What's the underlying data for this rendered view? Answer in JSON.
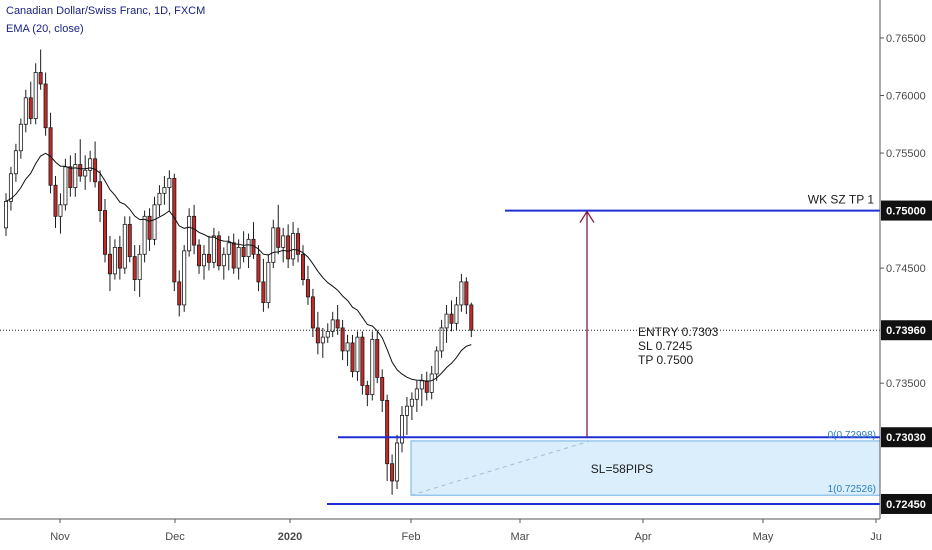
{
  "header": {
    "title": "Canadian Dollar/Swiss Franc, 1D, FXCM",
    "indicator": "EMA (20, close)"
  },
  "colors": {
    "up": "#ffffff",
    "down": "#c62828",
    "wick": "#1c1c1c",
    "ema": "#111111",
    "levels": "#1f2fd6",
    "arrow": "#7b1b47",
    "box_fill": "#dbeefb",
    "box_stroke": "#6fb0e3",
    "badge": "#111111"
  },
  "annotations": {
    "wk_label": "WK SZ TP 1",
    "entry_lines": [
      "ENTRY 0.7303",
      "SL 0.7245",
      "TP 0.7500"
    ],
    "box_label": "SL=58PIPS",
    "fib_top": "0(0.72998)",
    "fib_bottom": "1(0.72526)"
  },
  "chart_data": {
    "type": "candlestick",
    "title": "Canadian Dollar/Swiss Franc, 1D, FXCM",
    "price_range": [
      0.7205,
      0.7683
    ],
    "y_ticks": [
      "0.76500",
      "0.76000",
      "0.75500",
      "0.74500",
      "0.73500"
    ],
    "x_ticks": [
      {
        "label": "Nov",
        "bold": false
      },
      {
        "label": "Dec",
        "bold": false
      },
      {
        "label": "2020",
        "bold": true
      },
      {
        "label": "Feb",
        "bold": false
      },
      {
        "label": "Mar",
        "bold": false
      },
      {
        "label": "Apr",
        "bold": false
      },
      {
        "label": "May",
        "bold": false
      },
      {
        "label": "Ju",
        "bold": false
      }
    ],
    "badges": [
      "0.75000",
      "0.73960",
      "0.73030",
      "0.72450"
    ],
    "levels": [
      0.75,
      0.7303,
      0.7245
    ],
    "current_price": 0.7396,
    "ema_period": 20,
    "candles": [
      [
        0.7485,
        0.7515,
        0.7478,
        0.7508
      ],
      [
        0.7508,
        0.7538,
        0.75,
        0.7532
      ],
      [
        0.7532,
        0.7558,
        0.7525,
        0.7552
      ],
      [
        0.7552,
        0.758,
        0.7545,
        0.7575
      ],
      [
        0.7575,
        0.7605,
        0.7568,
        0.7598
      ],
      [
        0.7598,
        0.7612,
        0.7575,
        0.758
      ],
      [
        0.758,
        0.7628,
        0.7575,
        0.762
      ],
      [
        0.762,
        0.764,
        0.7605,
        0.761
      ],
      [
        0.761,
        0.762,
        0.7565,
        0.7572
      ],
      [
        0.7572,
        0.7585,
        0.7515,
        0.7522
      ],
      [
        0.7522,
        0.753,
        0.7485,
        0.7495
      ],
      [
        0.7495,
        0.7515,
        0.748,
        0.7505
      ],
      [
        0.7505,
        0.7545,
        0.75,
        0.7538
      ],
      [
        0.7538,
        0.7548,
        0.7512,
        0.752
      ],
      [
        0.752,
        0.755,
        0.7512,
        0.754
      ],
      [
        0.754,
        0.7562,
        0.7525,
        0.753
      ],
      [
        0.753,
        0.7548,
        0.7518,
        0.7535
      ],
      [
        0.7535,
        0.7552,
        0.7525,
        0.7545
      ],
      [
        0.7545,
        0.756,
        0.752,
        0.7525
      ],
      [
        0.7525,
        0.7535,
        0.749,
        0.75
      ],
      [
        0.75,
        0.751,
        0.7455,
        0.7462
      ],
      [
        0.7462,
        0.7478,
        0.743,
        0.7445
      ],
      [
        0.7445,
        0.7475,
        0.744,
        0.7468
      ],
      [
        0.7468,
        0.7478,
        0.744,
        0.745
      ],
      [
        0.745,
        0.7495,
        0.7445,
        0.7488
      ],
      [
        0.7488,
        0.7495,
        0.7455,
        0.746
      ],
      [
        0.746,
        0.747,
        0.743,
        0.744
      ],
      [
        0.744,
        0.747,
        0.7425,
        0.7462
      ],
      [
        0.7462,
        0.75,
        0.7455,
        0.7495
      ],
      [
        0.7495,
        0.7502,
        0.7465,
        0.7475
      ],
      [
        0.7475,
        0.7512,
        0.747,
        0.7505
      ],
      [
        0.7505,
        0.7522,
        0.7495,
        0.7515
      ],
      [
        0.7515,
        0.753,
        0.7505,
        0.752
      ],
      [
        0.752,
        0.7535,
        0.75,
        0.7528
      ],
      [
        0.7528,
        0.7532,
        0.743,
        0.7438
      ],
      [
        0.7438,
        0.7448,
        0.7408,
        0.7418
      ],
      [
        0.7418,
        0.747,
        0.7412,
        0.7465
      ],
      [
        0.7465,
        0.7502,
        0.746,
        0.7495
      ],
      [
        0.7495,
        0.7505,
        0.7462,
        0.747
      ],
      [
        0.747,
        0.7475,
        0.7445,
        0.7452
      ],
      [
        0.7452,
        0.747,
        0.744,
        0.7462
      ],
      [
        0.7462,
        0.7478,
        0.7448,
        0.7455
      ],
      [
        0.7455,
        0.7485,
        0.745,
        0.7478
      ],
      [
        0.7478,
        0.7482,
        0.7448,
        0.7452
      ],
      [
        0.7452,
        0.7468,
        0.744,
        0.7462
      ],
      [
        0.7462,
        0.7478,
        0.7448,
        0.7472
      ],
      [
        0.7472,
        0.748,
        0.7445,
        0.745
      ],
      [
        0.745,
        0.7475,
        0.744,
        0.7468
      ],
      [
        0.7468,
        0.7482,
        0.7455,
        0.746
      ],
      [
        0.746,
        0.748,
        0.745,
        0.7475
      ],
      [
        0.7475,
        0.749,
        0.7458,
        0.7462
      ],
      [
        0.7462,
        0.747,
        0.743,
        0.7438
      ],
      [
        0.7438,
        0.7458,
        0.7412,
        0.742
      ],
      [
        0.742,
        0.7462,
        0.7415,
        0.7455
      ],
      [
        0.7455,
        0.7492,
        0.745,
        0.7485
      ],
      [
        0.7485,
        0.7505,
        0.7462,
        0.7468
      ],
      [
        0.7468,
        0.7485,
        0.7455,
        0.7478
      ],
      [
        0.7478,
        0.7488,
        0.745,
        0.7458
      ],
      [
        0.7458,
        0.749,
        0.7452,
        0.748
      ],
      [
        0.748,
        0.7485,
        0.7455,
        0.7462
      ],
      [
        0.7462,
        0.747,
        0.7435,
        0.744
      ],
      [
        0.744,
        0.7452,
        0.7418,
        0.7425
      ],
      [
        0.7425,
        0.7432,
        0.739,
        0.7398
      ],
      [
        0.7398,
        0.7412,
        0.7375,
        0.7385
      ],
      [
        0.7385,
        0.7398,
        0.7372,
        0.739
      ],
      [
        0.739,
        0.7402,
        0.7385,
        0.7395
      ],
      [
        0.7395,
        0.7412,
        0.739,
        0.7405
      ],
      [
        0.7405,
        0.7418,
        0.7392,
        0.7398
      ],
      [
        0.7398,
        0.7405,
        0.737,
        0.7378
      ],
      [
        0.7378,
        0.7392,
        0.7365,
        0.7385
      ],
      [
        0.7385,
        0.7392,
        0.7355,
        0.736
      ],
      [
        0.736,
        0.7395,
        0.7352,
        0.739
      ],
      [
        0.739,
        0.7395,
        0.734,
        0.7348
      ],
      [
        0.7348,
        0.7352,
        0.733,
        0.734
      ],
      [
        0.734,
        0.7395,
        0.7335,
        0.7388
      ],
      [
        0.7388,
        0.7395,
        0.735,
        0.7355
      ],
      [
        0.7355,
        0.7362,
        0.7325,
        0.7335
      ],
      [
        0.7335,
        0.734,
        0.7265,
        0.728
      ],
      [
        0.728,
        0.7288,
        0.7253,
        0.7265
      ],
      [
        0.7265,
        0.7305,
        0.7258,
        0.7298
      ],
      [
        0.7298,
        0.733,
        0.729,
        0.7322
      ],
      [
        0.7322,
        0.7338,
        0.7305,
        0.733
      ],
      [
        0.733,
        0.7342,
        0.7318,
        0.7336
      ],
      [
        0.7336,
        0.7352,
        0.7325,
        0.7345
      ],
      [
        0.7345,
        0.7358,
        0.733,
        0.7352
      ],
      [
        0.7352,
        0.736,
        0.7335,
        0.7342
      ],
      [
        0.7342,
        0.7365,
        0.7336,
        0.7358
      ],
      [
        0.7358,
        0.7382,
        0.7352,
        0.7378
      ],
      [
        0.7378,
        0.7405,
        0.7372,
        0.7398
      ],
      [
        0.7398,
        0.7418,
        0.7385,
        0.741
      ],
      [
        0.741,
        0.7422,
        0.7395,
        0.7402
      ],
      [
        0.7402,
        0.7425,
        0.7396,
        0.7418
      ],
      [
        0.7418,
        0.7445,
        0.7412,
        0.7438
      ],
      [
        0.7438,
        0.7442,
        0.741,
        0.7418
      ],
      [
        0.7418,
        0.742,
        0.739,
        0.7396
      ]
    ]
  }
}
